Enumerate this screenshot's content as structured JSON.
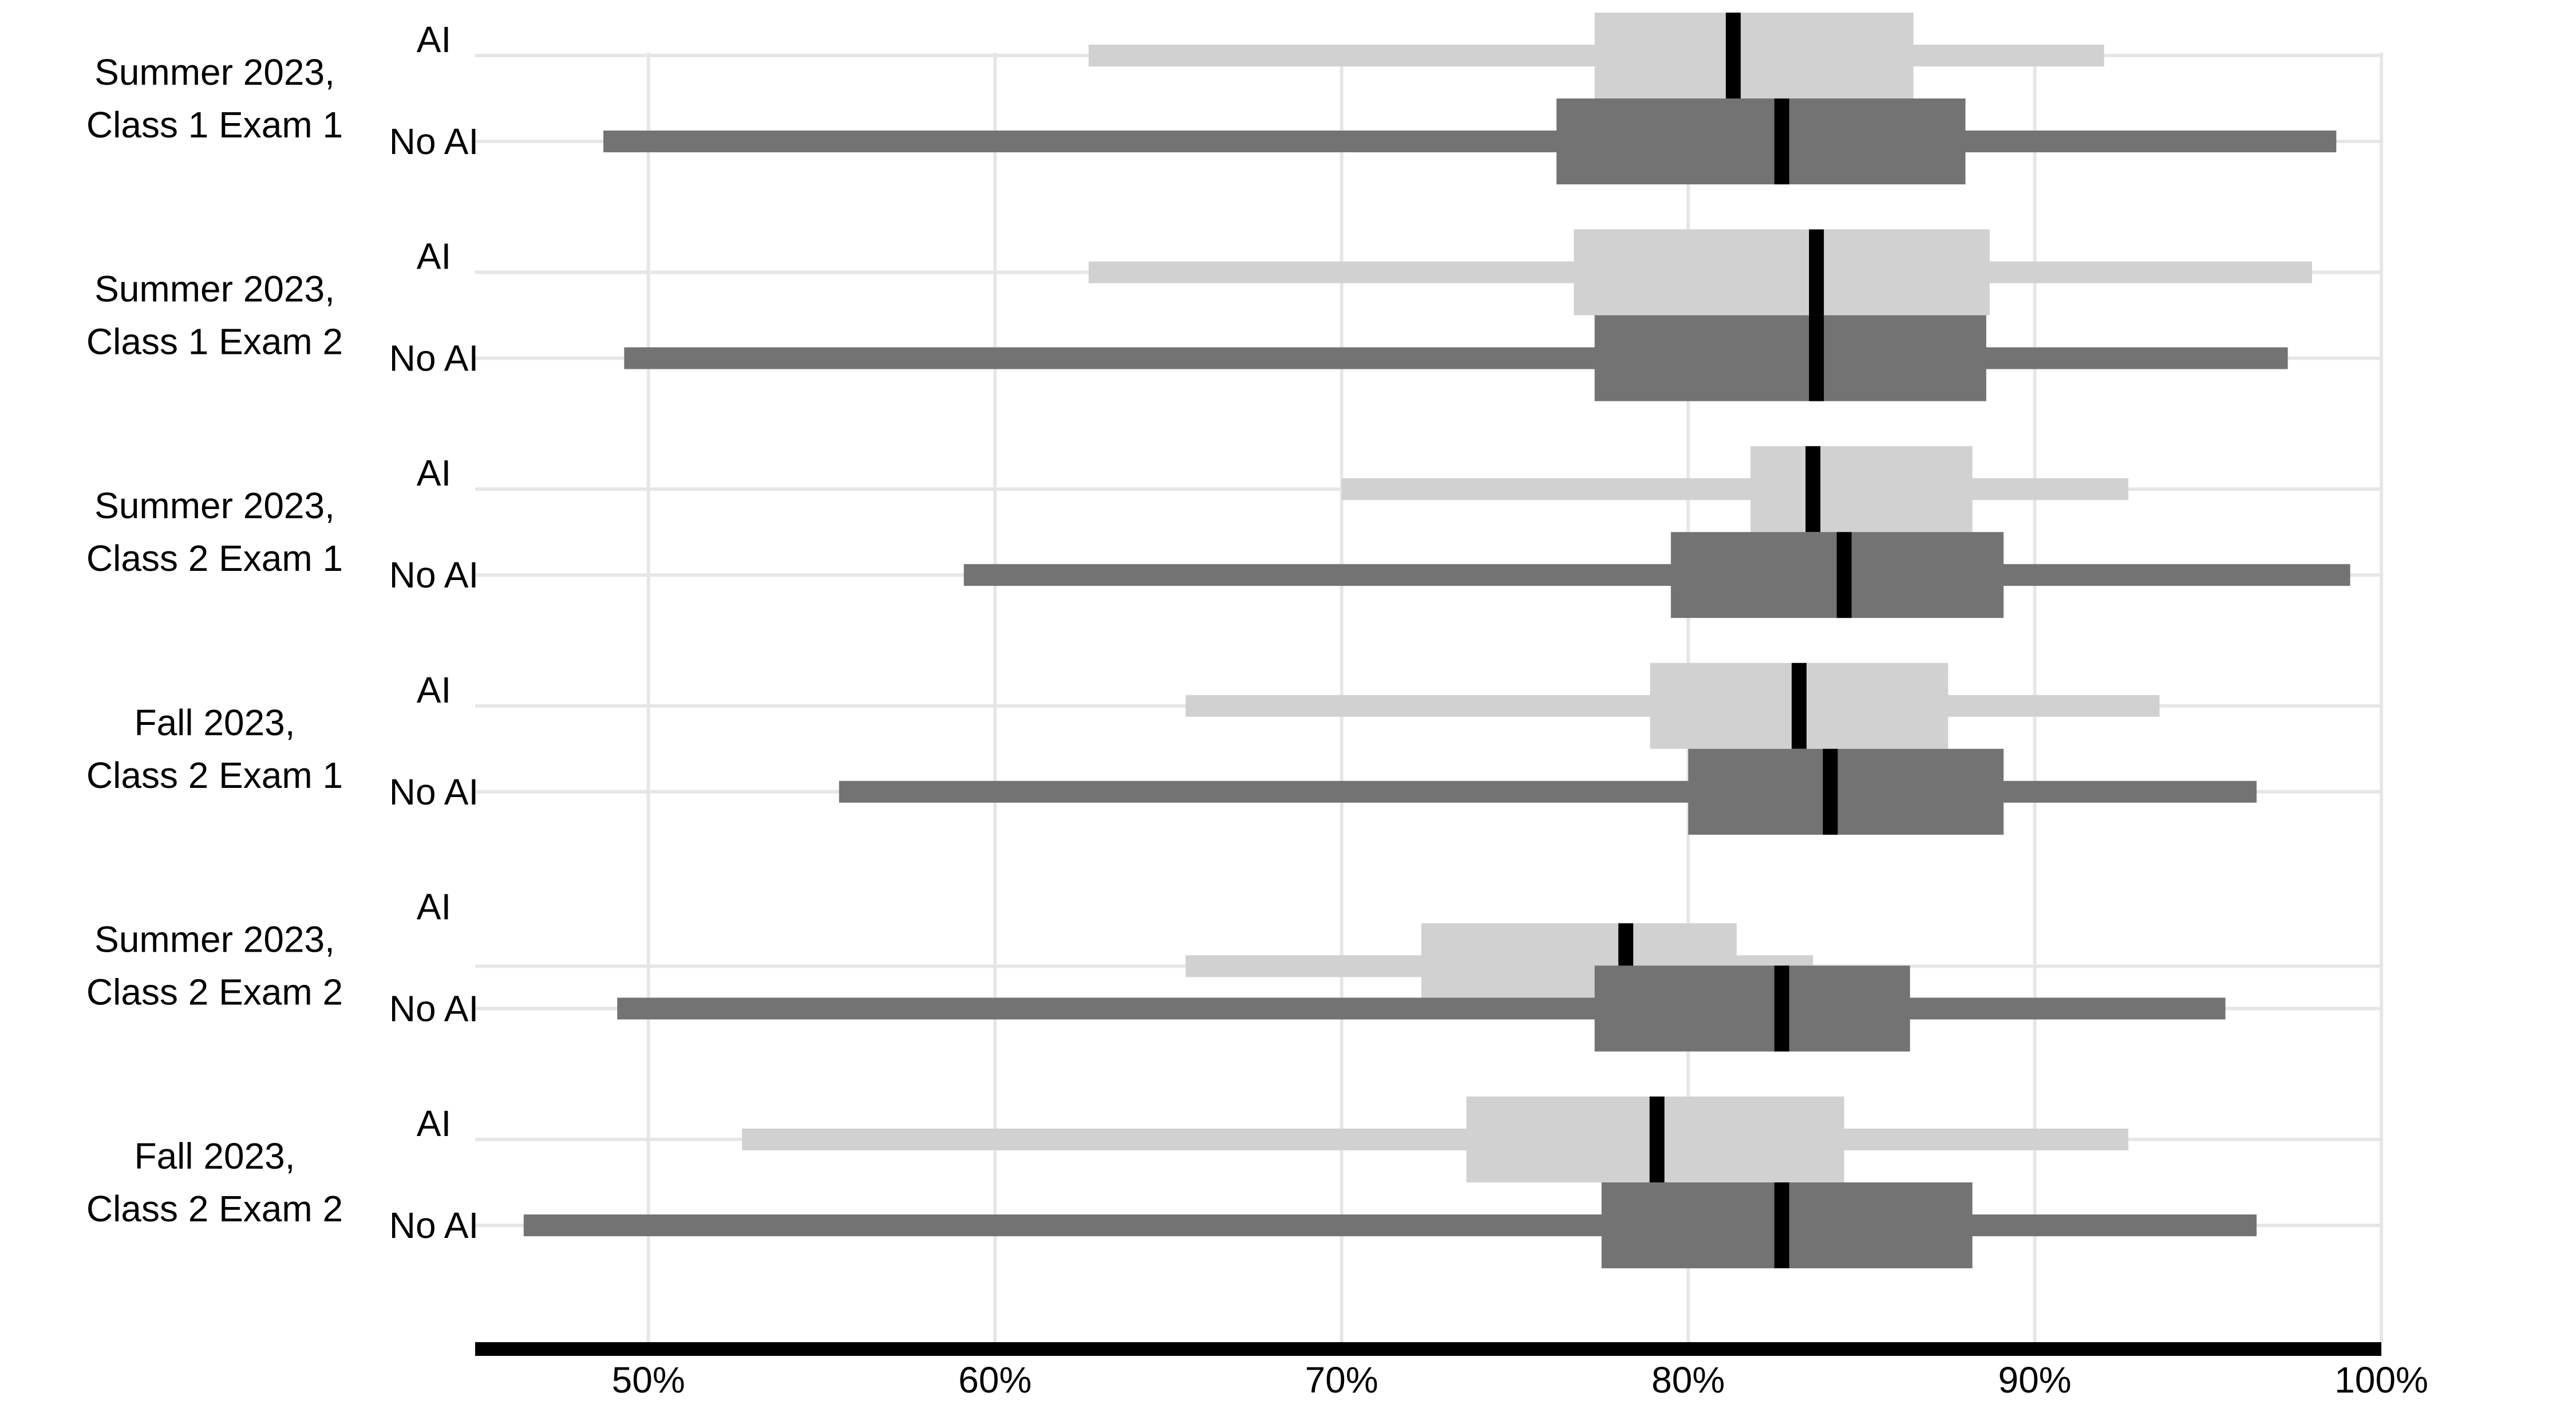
{
  "colors": {
    "ai": "#d1d1d1",
    "no_ai": "#737373",
    "median": "#000000",
    "grid": "#e6e6e6",
    "axis": "#000000",
    "background": "#ffffff"
  },
  "chart_data": {
    "type": "boxplot",
    "orientation": "horizontal",
    "xlim": [
      45,
      100
    ],
    "x_ticks": [
      50,
      60,
      70,
      80,
      90,
      100
    ],
    "x_tick_labels": [
      "50%",
      "60%",
      "70%",
      "80%",
      "90%",
      "100%"
    ],
    "vertical_grid": true,
    "bottom_axis_line": true,
    "conditions": [
      "AI",
      "No AI"
    ],
    "groups": [
      {
        "label": [
          "Summer 2023,",
          "Class 1 Exam 1"
        ],
        "ai": {
          "label": "AI",
          "min": 62.7,
          "q1": 77.3,
          "median": 81.3,
          "q3": 86.5,
          "max": 92.0
        },
        "no_ai": {
          "label": "No AI",
          "min": 48.7,
          "q1": 76.2,
          "median": 82.7,
          "q3": 88.0,
          "max": 98.7
        }
      },
      {
        "label": [
          "Summer 2023,",
          "Class 1 Exam 2"
        ],
        "ai": {
          "label": "AI",
          "min": 62.7,
          "q1": 76.7,
          "median": 83.7,
          "q3": 88.7,
          "max": 98.0
        },
        "no_ai": {
          "label": "No AI",
          "min": 49.3,
          "q1": 77.3,
          "median": 83.7,
          "q3": 88.6,
          "max": 97.3
        }
      },
      {
        "label": [
          "Summer 2023,",
          "Class 2 Exam 1"
        ],
        "ai": {
          "label": "AI",
          "min": 70.0,
          "q1": 81.8,
          "median": 83.6,
          "q3": 88.2,
          "max": 92.7
        },
        "no_ai": {
          "label": "No AI",
          "min": 59.1,
          "q1": 79.5,
          "median": 84.5,
          "q3": 89.1,
          "max": 99.1
        }
      },
      {
        "label": [
          "Fall 2023,",
          "Class 2 Exam 1"
        ],
        "ai": {
          "label": "AI",
          "min": 65.5,
          "q1": 78.9,
          "median": 83.2,
          "q3": 87.5,
          "max": 93.6
        },
        "no_ai": {
          "label": "No AI",
          "min": 55.5,
          "q1": 80.0,
          "median": 84.1,
          "q3": 89.1,
          "max": 96.4
        }
      },
      {
        "label": [
          "Summer 2023,",
          "Class 2 Exam 2"
        ],
        "ai": {
          "label": "AI",
          "min": 65.5,
          "q1": 72.3,
          "median": 78.2,
          "q3": 81.4,
          "max": 83.6
        },
        "no_ai": {
          "label": "No AI",
          "min": 49.1,
          "q1": 77.3,
          "median": 82.7,
          "q3": 86.4,
          "max": 95.5
        }
      },
      {
        "label": [
          "Fall 2023,",
          "Class 2 Exam 2"
        ],
        "ai": {
          "label": "AI",
          "min": 52.7,
          "q1": 73.6,
          "median": 79.1,
          "q3": 84.5,
          "max": 92.7
        },
        "no_ai": {
          "label": "No AI",
          "min": 46.4,
          "q1": 77.5,
          "median": 82.7,
          "q3": 88.2,
          "max": 96.4
        }
      }
    ]
  }
}
